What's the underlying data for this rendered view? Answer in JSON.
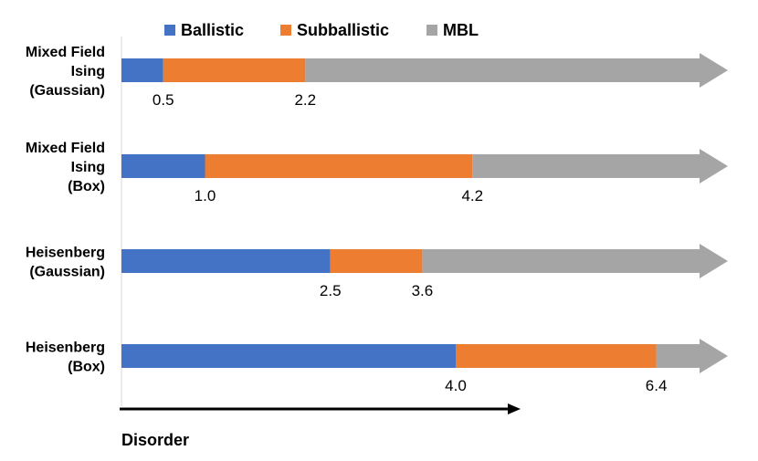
{
  "chart_data": {
    "type": "bar",
    "orientation": "horizontal-stacked",
    "title": "",
    "xlabel": "Disorder",
    "ylabel": "",
    "xlim": [
      0,
      14.5
    ],
    "categories": [
      "Mixed Field Ising (Gaussian)",
      "Mixed Field Ising (Box)",
      "Heisenberg (Gaussian)",
      "Heisenberg (Box)"
    ],
    "category_lines": [
      [
        "Mixed Field",
        "Ising",
        "(Gaussian)"
      ],
      [
        "Mixed Field",
        "Ising",
        "(Box)"
      ],
      [
        "Heisenberg",
        "(Gaussian)"
      ],
      [
        "Heisenberg",
        "(Box)"
      ]
    ],
    "series": [
      {
        "name": "Ballistic",
        "color": "#4472C4",
        "values": [
          0.5,
          1.0,
          2.5,
          4.0
        ]
      },
      {
        "name": "Subballistic",
        "color": "#ED7D31",
        "values": [
          1.7,
          3.2,
          1.1,
          2.4
        ]
      },
      {
        "name": "MBL",
        "color": "#A5A5A5",
        "values": [
          "arrow",
          "arrow",
          "arrow",
          "arrow"
        ]
      }
    ],
    "thresholds": [
      {
        "category": "Mixed Field Ising (Gaussian)",
        "ballistic_end": 0.5,
        "subballistic_end": 2.2,
        "labels": [
          "0.5",
          "2.2"
        ]
      },
      {
        "category": "Mixed Field Ising (Box)",
        "ballistic_end": 1.0,
        "subballistic_end": 4.2,
        "labels": [
          "1.0",
          "4.2"
        ]
      },
      {
        "category": "Heisenberg (Gaussian)",
        "ballistic_end": 2.5,
        "subballistic_end": 3.6,
        "labels": [
          "2.5",
          "3.6"
        ]
      },
      {
        "category": "Heisenberg (Box)",
        "ballistic_end": 4.0,
        "subballistic_end": 6.4,
        "labels": [
          "4.0",
          "6.4"
        ]
      }
    ],
    "legend": {
      "placement": "top",
      "entries": [
        "Ballistic",
        "Subballistic",
        "MBL"
      ]
    }
  }
}
